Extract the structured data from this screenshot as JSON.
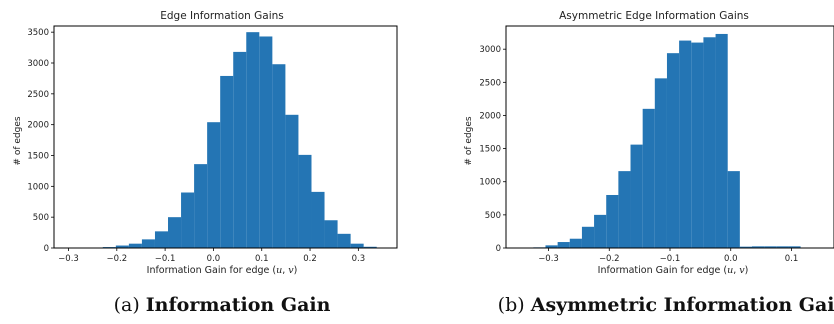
{
  "chart_data": [
    {
      "type": "bar",
      "title": "Edge Information Gains",
      "xlabel": "Information Gain for edge (u, v)",
      "xlabel_parts": {
        "prefix": "Information Gain for edge (",
        "var1": "u",
        "sep": ", ",
        "var2": "v",
        "suffix": ")"
      },
      "ylabel": "# of edges",
      "xlim": [
        -0.33,
        0.38
      ],
      "ylim": [
        0,
        3600
      ],
      "xticks": [
        -0.3,
        -0.2,
        -0.1,
        0.0,
        0.1,
        0.2,
        0.3
      ],
      "xtick_labels": [
        "−0.3",
        "−0.2",
        "−0.1",
        "0.0",
        "0.1",
        "0.2",
        "0.3"
      ],
      "yticks": [
        0,
        500,
        1000,
        1500,
        2000,
        2500,
        3000,
        3500
      ],
      "ytick_labels": [
        "0",
        "500",
        "1000",
        "1500",
        "2000",
        "2500",
        "3000",
        "3500"
      ],
      "bin_edges": [
        -0.31,
        -0.283,
        -0.256,
        -0.229,
        -0.202,
        -0.175,
        -0.148,
        -0.121,
        -0.094,
        -0.067,
        -0.04,
        -0.013,
        0.014,
        0.041,
        0.068,
        0.095,
        0.122,
        0.149,
        0.176,
        0.203,
        0.23,
        0.257,
        0.284,
        0.311,
        0.338,
        0.365
      ],
      "values": [
        3,
        3,
        5,
        15,
        40,
        70,
        140,
        270,
        500,
        900,
        1360,
        2040,
        2790,
        3180,
        3500,
        3430,
        2980,
        2160,
        1510,
        910,
        450,
        230,
        70,
        20,
        5
      ],
      "grid": false,
      "legend": "none"
    },
    {
      "type": "bar",
      "title": "Asymmetric Edge Information Gains",
      "xlabel": "Information Gain for edge (u, v)",
      "xlabel_parts": {
        "prefix": "Information Gain for edge (",
        "var1": "u",
        "sep": ", ",
        "var2": "v",
        "suffix": ")"
      },
      "ylabel": "# of edges",
      "xlim": [
        -0.37,
        0.17
      ],
      "ylim": [
        0,
        3350
      ],
      "xticks": [
        -0.3,
        -0.2,
        -0.1,
        0.0,
        0.1
      ],
      "xtick_labels": [
        "−0.3",
        "−0.2",
        "−0.1",
        "0.0",
        "0.1"
      ],
      "yticks": [
        0,
        500,
        1000,
        1500,
        2000,
        2500,
        3000
      ],
      "ytick_labels": [
        "0",
        "500",
        "1000",
        "1500",
        "2000",
        "2500",
        "3000"
      ],
      "bin_edges": [
        -0.345,
        -0.325,
        -0.305,
        -0.285,
        -0.265,
        -0.245,
        -0.225,
        -0.205,
        -0.185,
        -0.165,
        -0.145,
        -0.125,
        -0.105,
        -0.085,
        -0.065,
        -0.045,
        -0.025,
        -0.005,
        0.015,
        0.035,
        0.055,
        0.075,
        0.095,
        0.115,
        0.135,
        0.155,
        0.175
      ],
      "values": [
        5,
        10,
        40,
        90,
        140,
        320,
        500,
        800,
        1160,
        1560,
        2100,
        2560,
        2940,
        3130,
        3100,
        3180,
        3230,
        1160,
        20,
        25,
        25,
        25,
        25,
        5,
        5,
        5
      ],
      "grid": false,
      "legend": "none"
    }
  ],
  "bar_color": "#2475b4",
  "captions": [
    {
      "label": "(a)",
      "text": "Information Gain"
    },
    {
      "label": "(b)",
      "text": "Asymmetric Information Gain"
    }
  ]
}
